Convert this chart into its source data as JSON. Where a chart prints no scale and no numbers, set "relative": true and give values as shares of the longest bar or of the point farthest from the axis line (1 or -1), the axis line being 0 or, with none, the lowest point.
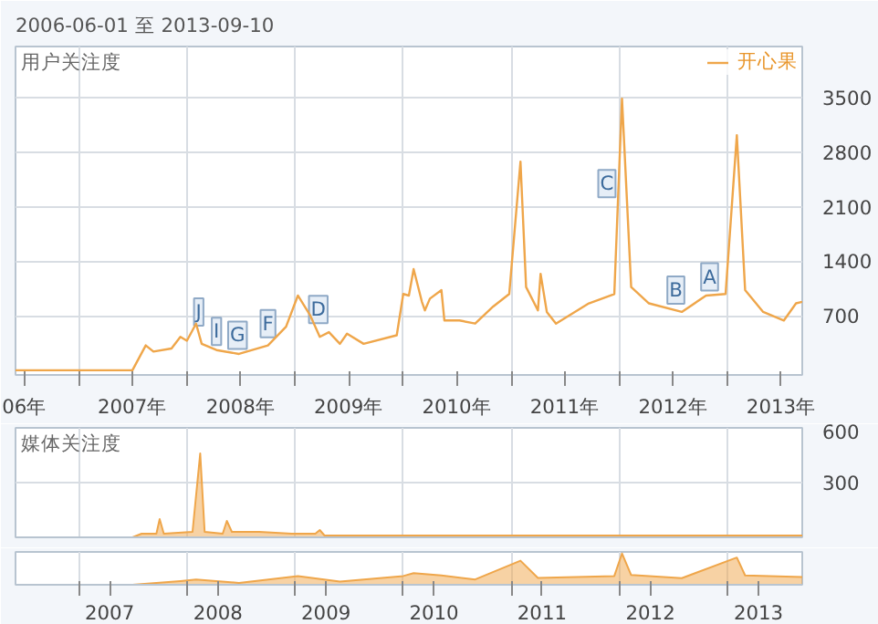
{
  "chart_data": [
    {
      "type": "line",
      "title": "2006-06-01 至 2013-09-10",
      "ylabel": "用户关注度",
      "x": [
        "2006-06-01",
        "2007-07-01",
        "2007-08-15",
        "2007-09-10",
        "2007-11-10",
        "2007-12-10",
        "2008-01-01",
        "2008-02-01",
        "2008-02-20",
        "2008-04-10",
        "2008-06-25",
        "2008-10-01",
        "2008-12-01",
        "2009-01-10",
        "2009-02-20",
        "2009-03-25",
        "2009-04-25",
        "2009-06-01",
        "2009-06-25",
        "2009-08-20",
        "2009-12-10",
        "2010-01-01",
        "2010-01-20",
        "2010-02-05",
        "2010-03-05",
        "2010-03-15",
        "2010-04-01",
        "2010-05-10",
        "2010-05-20",
        "2010-07-10",
        "2010-09-01",
        "2010-11-01",
        "2010-12-25",
        "2011-02-01",
        "2011-02-20",
        "2011-04-01",
        "2011-04-10",
        "2011-05-01",
        "2011-06-01",
        "2011-09-20",
        "2011-12-15",
        "2012-01-10",
        "2012-02-10",
        "2012-04-10",
        "2012-07-30",
        "2012-10-20",
        "2012-12-25",
        "2013-02-01",
        "2013-03-01",
        "2013-05-01",
        "2013-07-10",
        "2013-08-20",
        "2013-09-10"
      ],
      "series": [
        {
          "name": "开心果",
          "color": "#efa64a",
          "values": [
            0,
            0,
            320,
            240,
            280,
            430,
            380,
            600,
            340,
            260,
            210,
            320,
            560,
            960,
            710,
            430,
            490,
            340,
            470,
            340,
            450,
            980,
            960,
            1300,
            880,
            770,
            920,
            1030,
            640,
            640,
            600,
            820,
            980,
            2680,
            1070,
            770,
            1240,
            750,
            600,
            860,
            980,
            3490,
            1070,
            860,
            750,
            960,
            980,
            3020,
            1030,
            750,
            640,
            860,
            880
          ]
        }
      ],
      "xlim": [
        "2006-06-01",
        "2013-09-10"
      ],
      "xticks": [
        {
          "value": "2006-07-01",
          "label": "06年"
        },
        {
          "value": "2007-01-01",
          "label": null
        },
        {
          "value": "2007-07-01",
          "label": "2007年"
        },
        {
          "value": "2008-01-01",
          "label": null
        },
        {
          "value": "2008-07-01",
          "label": "2008年"
        },
        {
          "value": "2009-01-01",
          "label": null
        },
        {
          "value": "2009-07-01",
          "label": "2009年"
        },
        {
          "value": "2010-01-01",
          "label": null
        },
        {
          "value": "2010-07-01",
          "label": "2010年"
        },
        {
          "value": "2011-01-01",
          "label": null
        },
        {
          "value": "2011-07-01",
          "label": "2011年"
        },
        {
          "value": "2012-01-01",
          "label": null
        },
        {
          "value": "2012-07-01",
          "label": "2012年"
        },
        {
          "value": "2013-01-01",
          "label": null
        },
        {
          "value": "2013-07-01",
          "label": "2013年"
        }
      ],
      "ylim": [
        -60,
        4160
      ],
      "yticks": [
        700,
        1400,
        2100,
        2800,
        3500
      ],
      "grid": true,
      "legend": "top right",
      "annotations": [
        {
          "text": "J",
          "x": "2008-02-10",
          "y": 750
        },
        {
          "text": "I",
          "x": "2008-04-10",
          "y": 500
        },
        {
          "text": "G",
          "x": "2008-06-20",
          "y": 450
        },
        {
          "text": "F",
          "x": "2008-10-01",
          "y": 600
        },
        {
          "text": "D",
          "x": "2009-03-20",
          "y": 780
        },
        {
          "text": "C",
          "x": "2011-11-20",
          "y": 2400
        },
        {
          "text": "B",
          "x": "2012-07-10",
          "y": 1030
        },
        {
          "text": "A",
          "x": "2012-11-01",
          "y": 1200
        }
      ]
    },
    {
      "type": "area",
      "ylabel": "媒体关注度",
      "x": [
        "2006-06-01",
        "2007-07-01",
        "2007-08-01",
        "2007-09-20",
        "2007-10-01",
        "2007-10-15",
        "2008-01-20",
        "2008-02-15",
        "2008-03-01",
        "2008-05-01",
        "2008-05-15",
        "2008-06-01",
        "2008-09-01",
        "2008-12-20",
        "2009-03-10",
        "2009-03-25",
        "2009-04-10",
        "2013-09-10"
      ],
      "series": [
        {
          "color": "#efa64a",
          "values": [
            0,
            0,
            20,
            20,
            100,
            20,
            30,
            460,
            30,
            20,
            90,
            30,
            30,
            20,
            20,
            40,
            10,
            10
          ]
        }
      ],
      "xlim": [
        "2006-06-01",
        "2013-09-10"
      ],
      "xticks": [
        {
          "value": "2007-01-01",
          "label": null
        },
        {
          "value": "2008-01-01",
          "label": null
        },
        {
          "value": "2009-01-01",
          "label": null
        },
        {
          "value": "2010-01-01",
          "label": null
        },
        {
          "value": "2011-01-01",
          "label": null
        },
        {
          "value": "2012-01-01",
          "label": null
        },
        {
          "value": "2013-01-01",
          "label": null
        }
      ],
      "ylim": [
        0,
        600
      ],
      "yticks": [
        300,
        600
      ],
      "grid": true,
      "tick_labels": "y"
    },
    {
      "type": "area",
      "relative": true,
      "x": [
        "2006-06-01",
        "2007-07-01",
        "2007-12-10",
        "2008-02-01",
        "2008-06-25",
        "2009-01-10",
        "2009-06-01",
        "2010-01-01",
        "2010-02-05",
        "2010-05-10",
        "2010-09-01",
        "2011-02-01",
        "2011-04-01",
        "2011-12-15",
        "2012-01-10",
        "2012-02-10",
        "2012-07-30",
        "2013-02-01",
        "2013-03-01",
        "2013-09-10"
      ],
      "series": [
        {
          "color": "#efa64a",
          "values": [
            0,
            0,
            0.12,
            0.17,
            0.06,
            0.28,
            0.1,
            0.28,
            0.37,
            0.3,
            0.17,
            0.77,
            0.22,
            0.28,
            1,
            0.31,
            0.21,
            0.87,
            0.3,
            0.25
          ]
        }
      ],
      "xlim": [
        "2006-06-01",
        "2013-09-10"
      ],
      "xticks": [
        {
          "value": "2007-01-01",
          "label": null
        },
        {
          "value": "2007-04-15",
          "label": "2007"
        },
        {
          "value": "2008-01-01",
          "label": null
        },
        {
          "value": "2008-04-15",
          "label": "2008"
        },
        {
          "value": "2009-01-01",
          "label": null
        },
        {
          "value": "2009-04-15",
          "label": "2009"
        },
        {
          "value": "2010-01-01",
          "label": null
        },
        {
          "value": "2010-04-15",
          "label": "2010"
        },
        {
          "value": "2011-01-01",
          "label": null
        },
        {
          "value": "2011-04-15",
          "label": "2011"
        },
        {
          "value": "2012-01-01",
          "label": null
        },
        {
          "value": "2012-04-15",
          "label": "2012"
        },
        {
          "value": "2013-01-01",
          "label": null
        },
        {
          "value": "2013-04-15",
          "label": "2013"
        }
      ],
      "grid": "x",
      "tick_labels": "x"
    }
  ]
}
